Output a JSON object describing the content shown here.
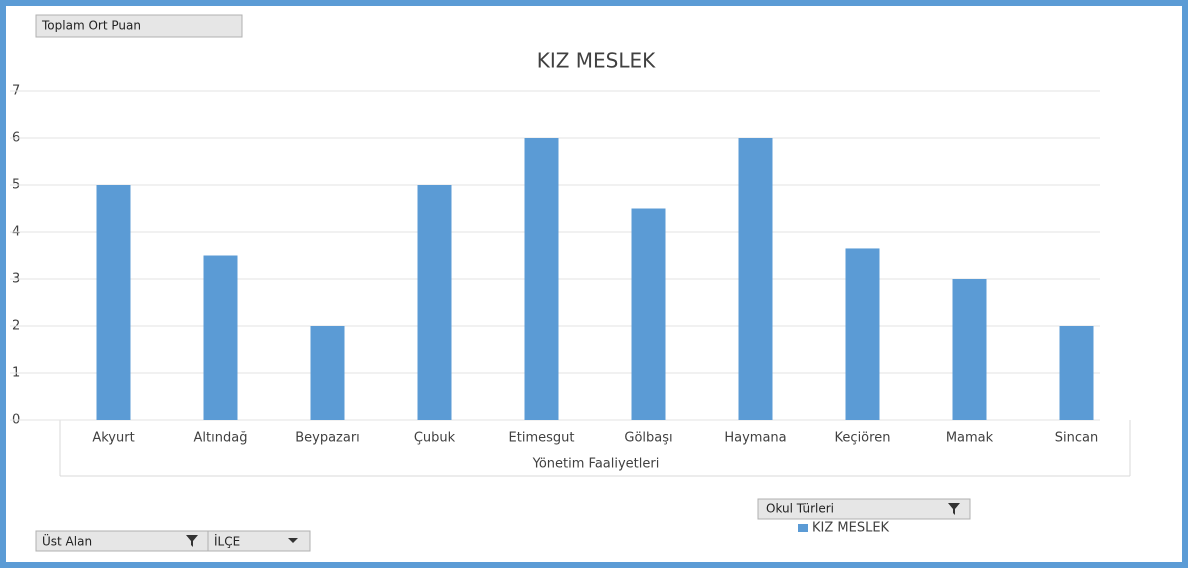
{
  "chart_data": {
    "type": "bar",
    "title": "KIZ MESLEK",
    "categories": [
      "Akyurt",
      "Altındağ",
      "Beypazarı",
      "Çubuk",
      "Etimesgut",
      "Gölbaşı",
      "Haymana",
      "Keçiören",
      "Mamak",
      "Sincan"
    ],
    "series": [
      {
        "name": "KIZ MESLEK",
        "color": "#5b9bd5",
        "values": [
          5,
          3.5,
          2,
          5,
          6,
          4.5,
          6,
          3.65,
          3,
          2
        ]
      }
    ],
    "x_label": "Yönetim Faaliyetleri",
    "ylim": [
      0,
      7
    ],
    "yticks": [
      0,
      1,
      2,
      3,
      4,
      5,
      6,
      7
    ],
    "grid": true
  },
  "field_buttons": {
    "values_field": "Toplam Ort Puan",
    "legend_field": "Okul Türleri",
    "filter_field": "Üst Alan",
    "axis_field": "İLÇE"
  }
}
